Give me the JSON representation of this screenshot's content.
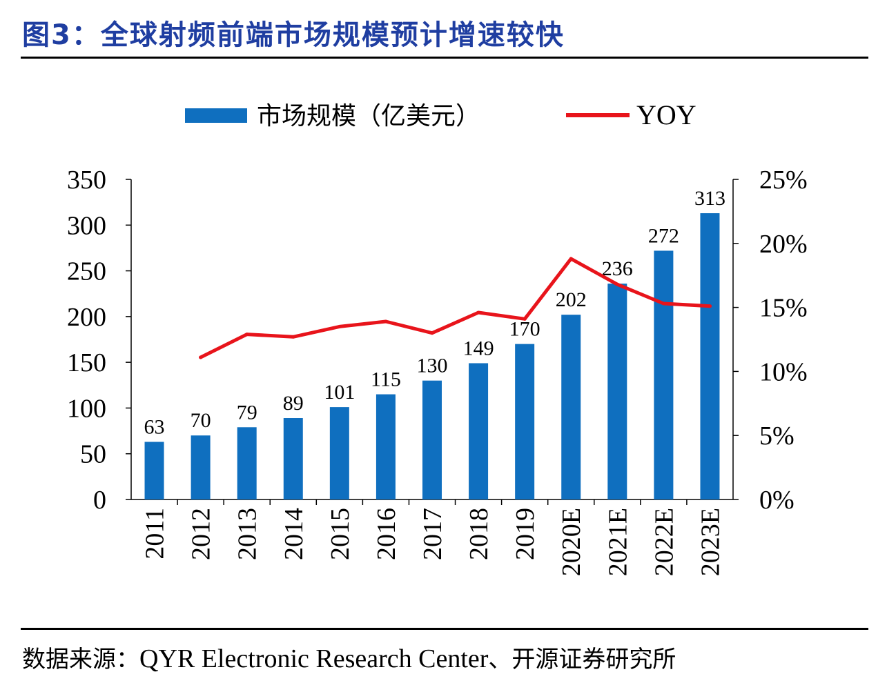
{
  "header": {
    "title": "图3：全球射频前端市场规模预计增速较快"
  },
  "footer": {
    "source_label": "数据来源：",
    "source_text": "QYR Electronic Research Center",
    "source_suffix": "、开源证券研究所"
  },
  "chart_data": {
    "type": "bar",
    "categories": [
      "2011",
      "2012",
      "2013",
      "2014",
      "2015",
      "2016",
      "2017",
      "2018",
      "2019",
      "2020E",
      "2021E",
      "2022E",
      "2023E"
    ],
    "series": [
      {
        "name": "市场规模（亿美元）",
        "type": "bar",
        "axis": "left",
        "color": "#0f6fbf",
        "values": [
          63,
          70,
          79,
          89,
          101,
          115,
          130,
          149,
          170,
          202,
          236,
          272,
          313
        ]
      },
      {
        "name": "YOY",
        "type": "line",
        "axis": "right",
        "color": "#e8141b",
        "values": [
          null,
          11.1,
          12.9,
          12.7,
          13.5,
          13.9,
          13.0,
          14.6,
          14.1,
          18.8,
          16.8,
          15.3,
          15.1
        ]
      }
    ],
    "y_left": {
      "ylim": [
        0,
        350
      ],
      "ticks": [
        "0",
        "50",
        "100",
        "150",
        "200",
        "250",
        "300",
        "350"
      ]
    },
    "y_right": {
      "ylim": [
        0,
        25
      ],
      "ticks": [
        "0%",
        "5%",
        "10%",
        "15%",
        "20%",
        "25%"
      ]
    },
    "data_labels": [
      "63",
      "70",
      "79",
      "89",
      "101",
      "115",
      "130",
      "149",
      "170",
      "202",
      "236",
      "272",
      "313"
    ],
    "legend": "top",
    "grid": false
  }
}
